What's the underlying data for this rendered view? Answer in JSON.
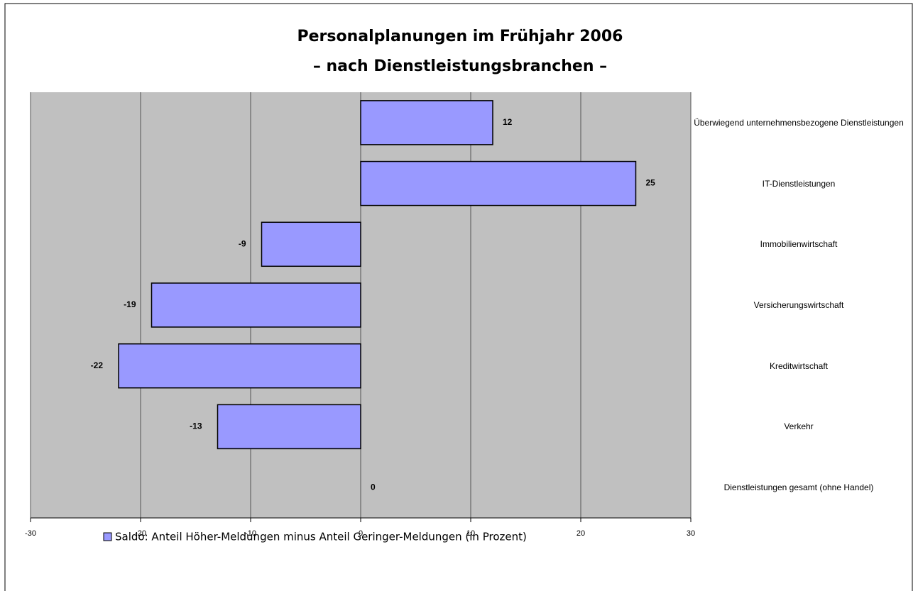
{
  "chart_data": {
    "type": "bar",
    "orientation": "horizontal",
    "title": "Personalplanungen im Frühjahr 2006",
    "subtitle": "– nach Dienstleistungsbranchen –",
    "categories": [
      "Überwiegend unternehmensbezogene Dienstleistungen",
      "IT-Dienstleistungen",
      "Immobilienwirtschaft",
      "Versicherungswirtschaft",
      "Kreditwirtschaft",
      "Verkehr",
      "Dienstleistungen gesamt (ohne Handel)"
    ],
    "series": [
      {
        "name": "Saldo: Anteil Höher-Meldungen minus Anteil Geringer-Meldungen (in Prozent)",
        "color": "#9999ff",
        "values": [
          12,
          25,
          -9,
          -19,
          -22,
          -13,
          0
        ]
      }
    ],
    "xlim": [
      -30,
      30
    ],
    "xticks": [
      -30,
      -20,
      -10,
      0,
      10,
      20,
      30
    ],
    "grid": true,
    "legend": "bottom-left"
  }
}
